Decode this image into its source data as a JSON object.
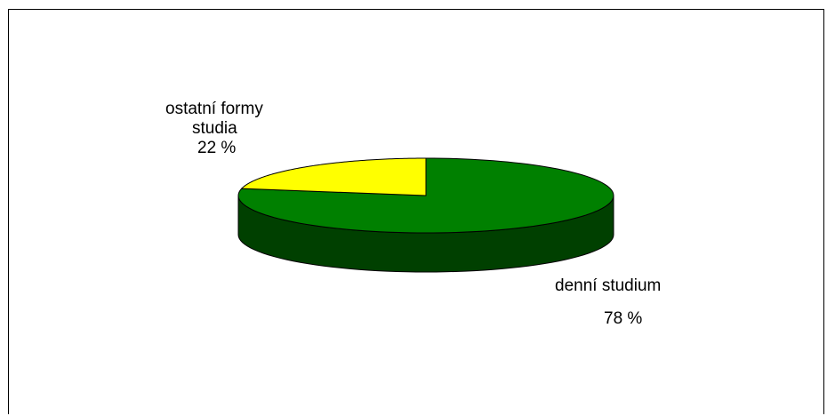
{
  "chart_data": {
    "type": "pie",
    "title": "",
    "slices": [
      {
        "label_lines": [
          "denní studium"
        ],
        "value_label": "78 %",
        "value": 78,
        "color": "#008000",
        "side_color": "#004000"
      },
      {
        "label_lines": [
          "ostatní formy",
          "studia"
        ],
        "value_label": "22 %",
        "value": 22,
        "color": "#ffff00",
        "side_color": "#808000"
      }
    ],
    "legend": "none",
    "three_d": true
  }
}
